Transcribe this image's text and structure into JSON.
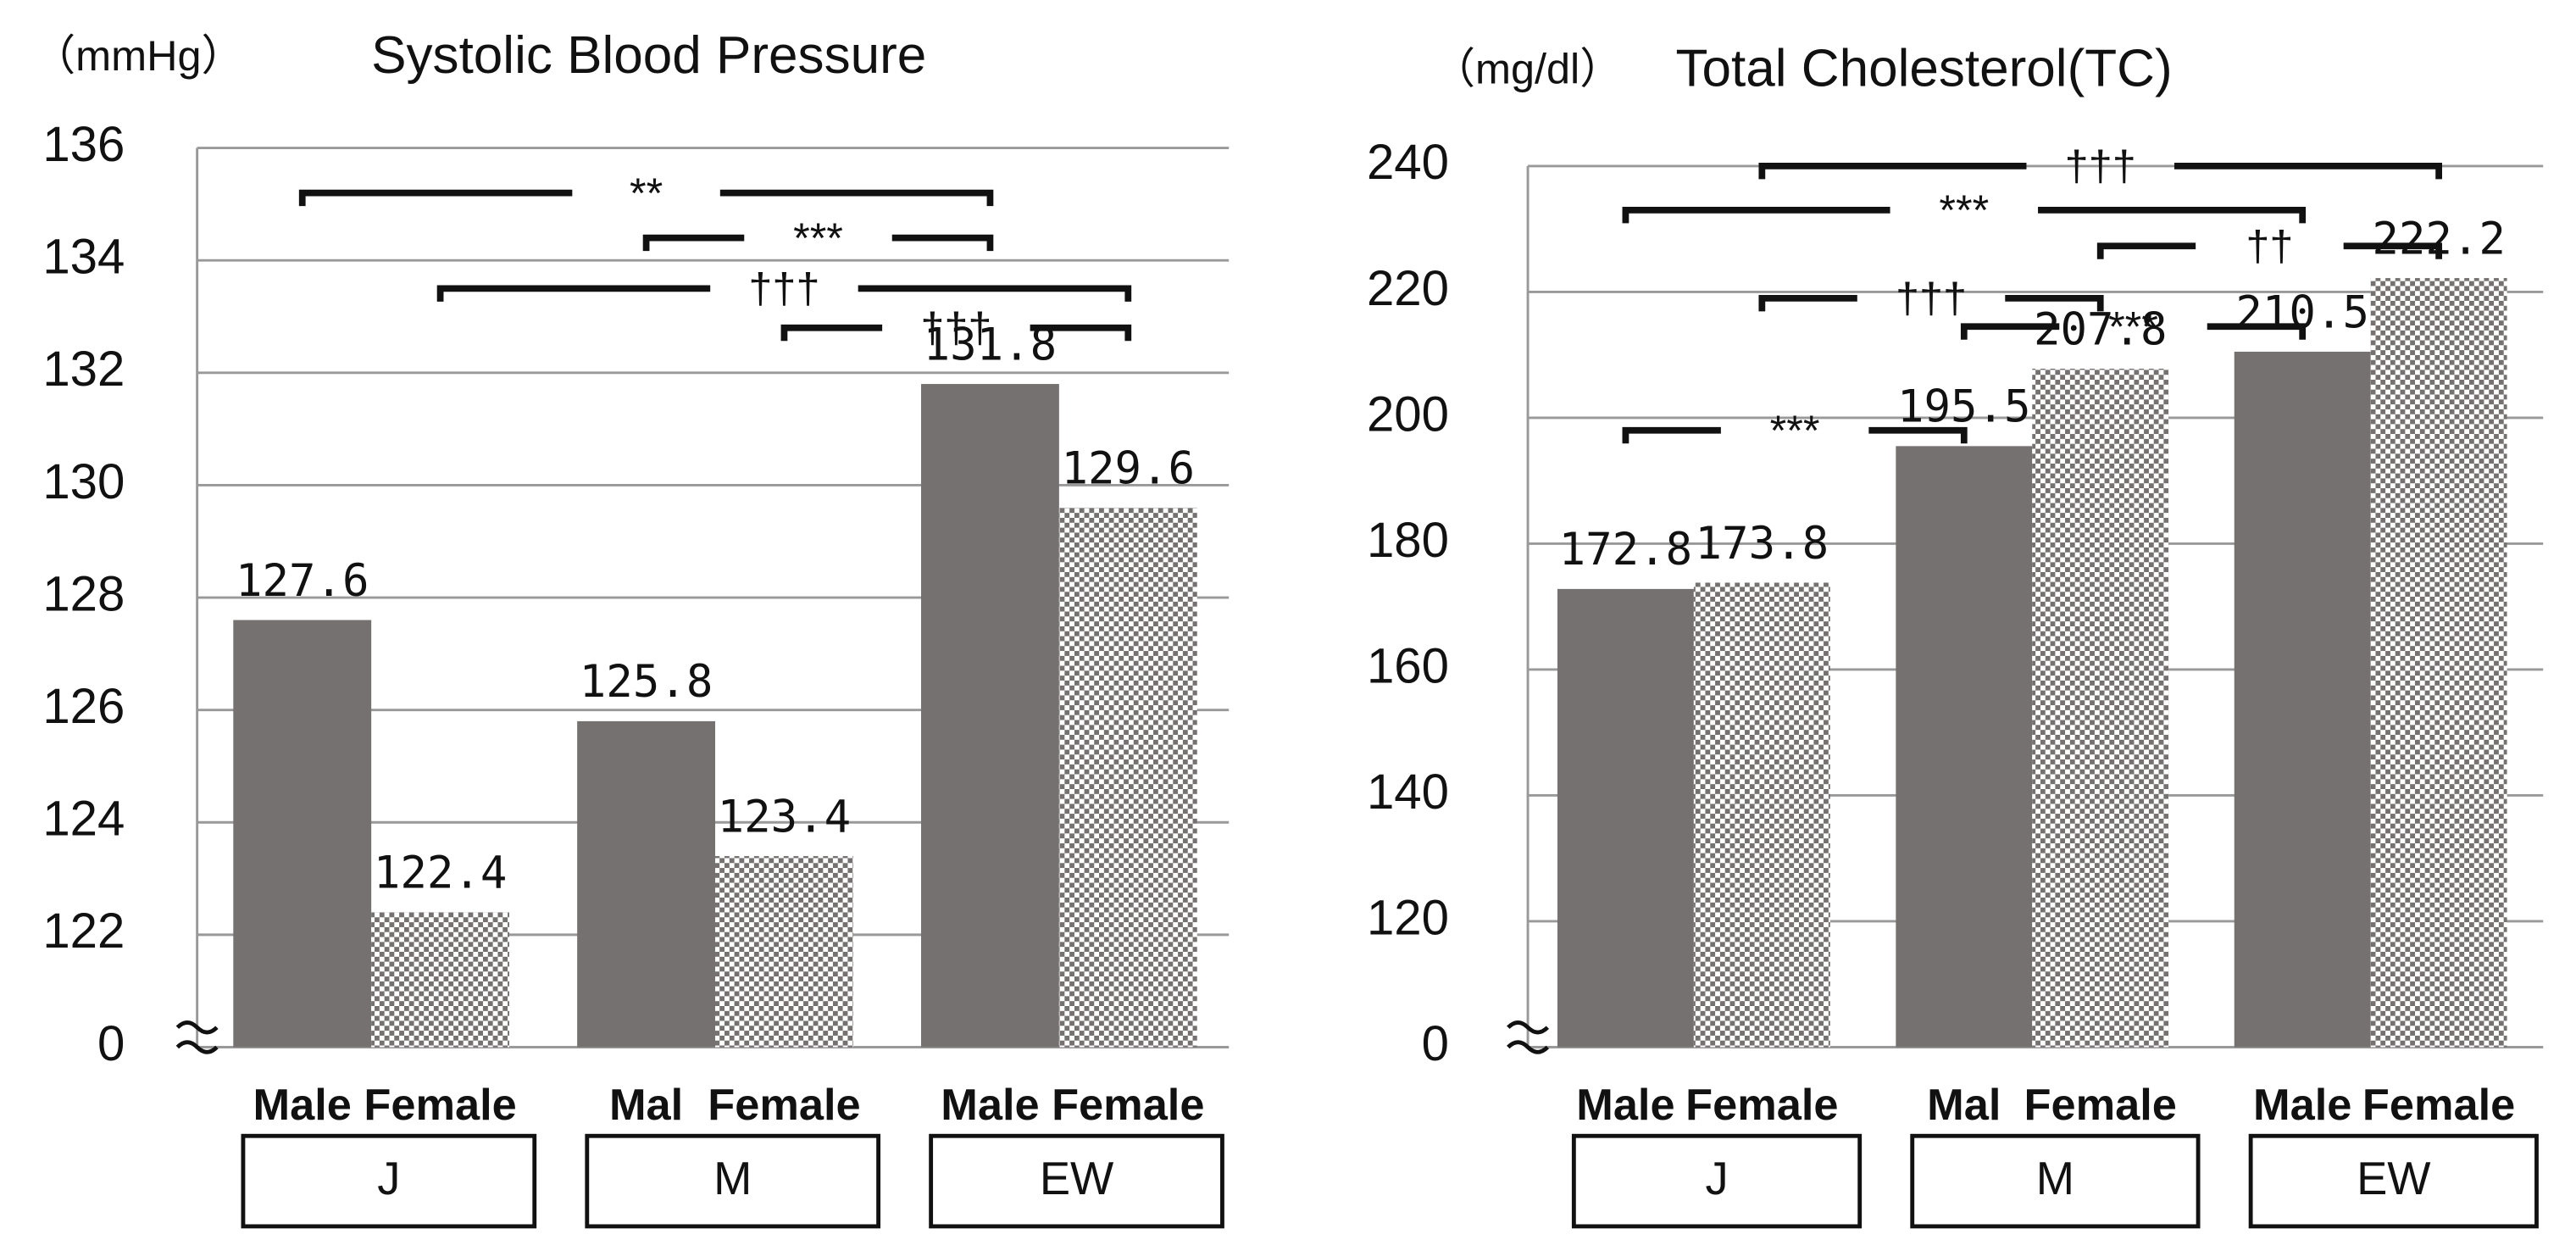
{
  "chart_data": [
    {
      "type": "bar",
      "unit_label": "（mmHg）",
      "title": "Systolic Blood Pressure",
      "categories": [
        "J",
        "M",
        "EW"
      ],
      "bar_labels": [
        "Male",
        "Female",
        "Mal",
        "Female",
        "Male",
        "Female"
      ],
      "series": [
        {
          "name": "Male",
          "color": "#767171",
          "pattern": "solid",
          "values": [
            127.6,
            125.8,
            131.8
          ]
        },
        {
          "name": "Female",
          "color": "#767171",
          "pattern": "checker",
          "values": [
            122.4,
            123.4,
            129.6
          ]
        }
      ],
      "ylim": [
        0,
        136
      ],
      "axis_break": [
        0,
        120
      ],
      "yticks": [
        0,
        122,
        124,
        126,
        128,
        130,
        132,
        134,
        136
      ],
      "grid": true,
      "annotations": [
        {
          "text": "**",
          "from": 0,
          "to": 4,
          "y": 135.2,
          "color": "#5a5a2e"
        },
        {
          "text": "***",
          "from": 2,
          "to": 4,
          "y": 134.4,
          "color": "#111111"
        },
        {
          "text": "†††",
          "from": 1,
          "to": 5,
          "y": 133.5,
          "color": "#111111"
        },
        {
          "text": "†††",
          "from": 3,
          "to": 5,
          "y": 132.8,
          "color": "#111111"
        }
      ]
    },
    {
      "type": "bar",
      "unit_label": "（mg/dl）",
      "title": "Total Cholesterol(TC)",
      "categories": [
        "J",
        "M",
        "EW"
      ],
      "bar_labels": [
        "Male",
        "Female",
        "Mal",
        "Female",
        "Male",
        "Female"
      ],
      "series": [
        {
          "name": "Male",
          "color": "#767171",
          "pattern": "solid",
          "values": [
            172.8,
            195.5,
            210.5
          ]
        },
        {
          "name": "Female",
          "color": "#767171",
          "pattern": "checker",
          "values": [
            173.8,
            207.8,
            222.2
          ]
        }
      ],
      "ylim": [
        0,
        240
      ],
      "axis_break": [
        0,
        100
      ],
      "yticks": [
        0,
        120,
        140,
        160,
        180,
        200,
        220,
        240
      ],
      "grid": true,
      "annotations": [
        {
          "text": "†††",
          "from": 1,
          "to": 5,
          "y": 240,
          "color": "#111111"
        },
        {
          "text": "***",
          "from": 0,
          "to": 4,
          "y": 233,
          "color": "#111111"
        },
        {
          "text": "††",
          "from": 3,
          "to": 5,
          "y": 227.3,
          "color": "#111111"
        },
        {
          "text": "†††",
          "from": 1,
          "to": 3,
          "y": 219,
          "color": "#111111"
        },
        {
          "text": "***",
          "from": 2,
          "to": 4,
          "y": 214.5,
          "color": "#111111"
        },
        {
          "text": "***",
          "from": 0,
          "to": 2,
          "y": 198,
          "color": "#111111"
        }
      ]
    }
  ]
}
